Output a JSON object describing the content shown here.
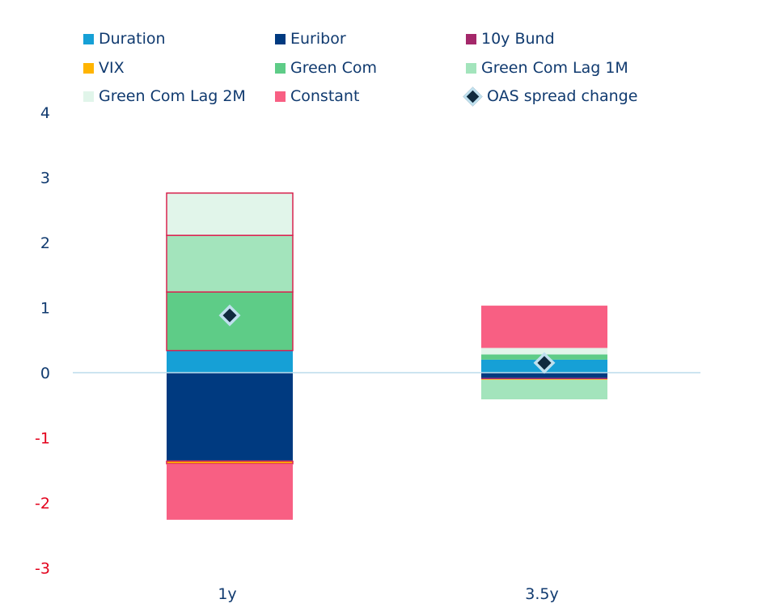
{
  "chart_data": {
    "type": "bar",
    "stacked": true,
    "categories": [
      "1y",
      "3.5y"
    ],
    "ylim": [
      -3,
      4
    ],
    "yticks": [
      4,
      3,
      2,
      1,
      0,
      -1,
      -2,
      -3
    ],
    "title": "",
    "xlabel": "",
    "ylabel": "",
    "legend_position": "top",
    "series": [
      {
        "name": "Duration",
        "color": "#16a0d6",
        "values": [
          0.34,
          0.2
        ]
      },
      {
        "name": "Euribor",
        "color": "#003a80",
        "values": [
          -1.35,
          -0.08
        ]
      },
      {
        "name": "10y Bund",
        "color": "#a4286a",
        "values": [
          -0.01,
          -0.02
        ]
      },
      {
        "name": "VIX",
        "color": "#ffb400",
        "values": [
          -0.04,
          -0.01
        ]
      },
      {
        "name": "Green Com",
        "color": "#5ecc87",
        "values": [
          0.9,
          0.08
        ]
      },
      {
        "name": "Green Com Lag 1M",
        "color": "#a3e4bc",
        "values": [
          0.87,
          -0.3
        ]
      },
      {
        "name": "Green Com Lag 2M",
        "color": "#e1f5ea",
        "values": [
          0.65,
          0.1
        ]
      },
      {
        "name": "Constant",
        "color": "#f85f83",
        "values": [
          -0.86,
          0.65
        ]
      }
    ],
    "marker_series": {
      "name": "OAS spread change",
      "values": [
        0.88,
        0.15
      ]
    }
  }
}
